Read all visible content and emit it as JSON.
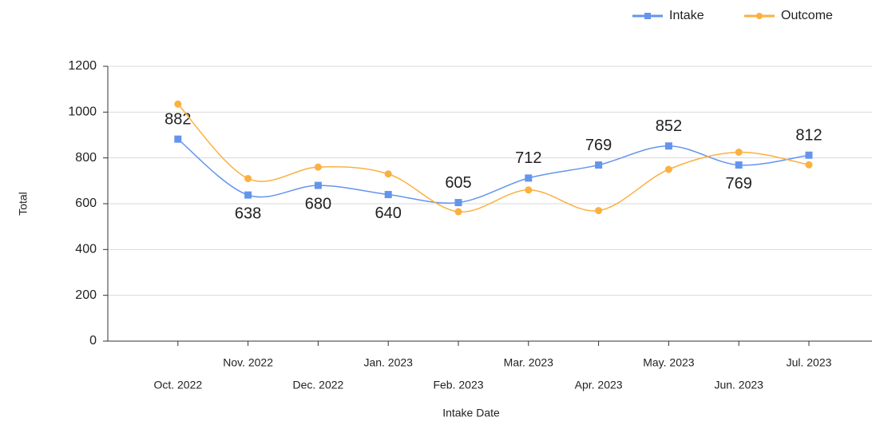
{
  "chart_data": {
    "type": "line",
    "x_label": "Intake Date",
    "y_label": "Total",
    "categories": [
      "Oct. 2022",
      "Nov. 2022",
      "Dec. 2022",
      "Jan. 2023",
      "Feb. 2023",
      "Mar. 2023",
      "Apr. 2023",
      "May. 2023",
      "Jun. 2023",
      "Jul. 2023"
    ],
    "series": [
      {
        "name": "Intake",
        "color": "#6495ed",
        "values": [
          882,
          638,
          680,
          640,
          605,
          712,
          769,
          852,
          769,
          812
        ]
      },
      {
        "name": "Outcome",
        "color": "#fbb040",
        "values": [
          1035,
          710,
          760,
          730,
          565,
          660,
          570,
          750,
          825,
          770
        ]
      }
    ],
    "ylim": [
      0,
      1200
    ],
    "yticks": [
      0,
      200,
      400,
      600,
      800,
      1000,
      1200
    ],
    "grid": true,
    "legend": "top-right"
  }
}
